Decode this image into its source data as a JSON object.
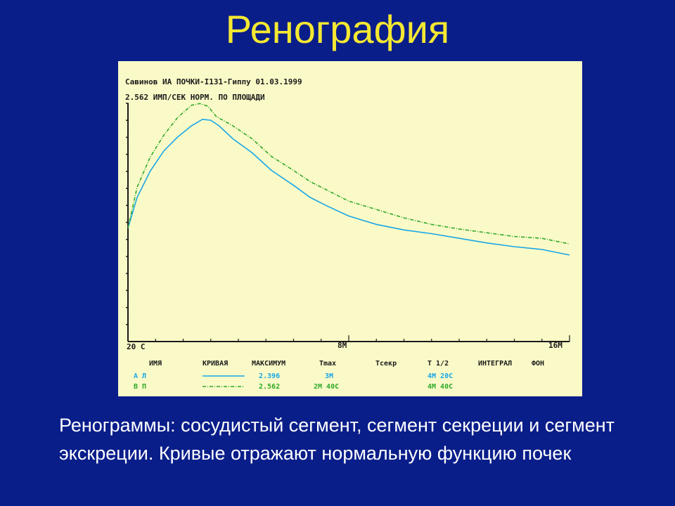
{
  "slide": {
    "title": "Ренография",
    "caption": "Ренограммы: сосудистый сегмент, сегмент секреции и сегмент экскреции. Кривые отражают нормальную функцию почек"
  },
  "colors": {
    "background": "#0a1e8a",
    "title": "#f4e832",
    "panel": "#fafac8",
    "curve_left": "#19a6e6",
    "curve_right": "#2fa82a",
    "ink": "#1a1a1a"
  },
  "chart_data": {
    "type": "line",
    "header_line1": "Савинов ИА  ПОЧКИ-I131-Гиппу  01.03.1999",
    "header_line2": "2.562 ИМП/СЕК    НОРМ. ПО ПЛОЩАДИ",
    "x_start_label": "20 С",
    "x_mid_label": "8М",
    "x_end_label": "16М",
    "xlim": [
      0,
      16
    ],
    "ylim": [
      0,
      2.562
    ],
    "series": [
      {
        "label_short": "А Л",
        "maximum": "2.396",
        "tmax": "3М",
        "tsekr": "",
        "t_half": "4М 20С",
        "color": "#19a6e6",
        "x": [
          0,
          0.33,
          0.8,
          1.3,
          1.8,
          2.3,
          2.7,
          3.0,
          3.3,
          3.8,
          4.5,
          5.2,
          6.0,
          6.6,
          7.2,
          8.0,
          9.0,
          10.0,
          11.0,
          12.0,
          13.0,
          14.0,
          15.0,
          16.0
        ],
        "y": [
          1.22,
          1.55,
          1.83,
          2.05,
          2.2,
          2.32,
          2.39,
          2.38,
          2.32,
          2.18,
          2.03,
          1.84,
          1.68,
          1.55,
          1.46,
          1.35,
          1.26,
          1.2,
          1.16,
          1.11,
          1.06,
          1.02,
          0.99,
          0.93
        ]
      },
      {
        "label_short": "В П",
        "maximum": "2.562",
        "tmax": "2М 40С",
        "tsekr": "",
        "t_half": "4М 40С",
        "color": "#2fa82a",
        "x": [
          0,
          0.33,
          0.8,
          1.3,
          1.8,
          2.3,
          2.6,
          2.9,
          3.2,
          3.8,
          4.5,
          5.2,
          6.0,
          6.6,
          7.2,
          8.0,
          9.0,
          10.0,
          11.0,
          12.0,
          13.0,
          14.0,
          15.0,
          16.0
        ],
        "y": [
          1.22,
          1.66,
          1.98,
          2.22,
          2.41,
          2.54,
          2.56,
          2.53,
          2.42,
          2.32,
          2.18,
          1.99,
          1.84,
          1.72,
          1.63,
          1.51,
          1.42,
          1.33,
          1.26,
          1.21,
          1.17,
          1.13,
          1.11,
          1.05
        ]
      }
    ],
    "legend_headers": {
      "name": "ИМЯ",
      "curve": "КРИВАЯ",
      "maximum": "МАКСИМУМ",
      "tmax": "Tmax",
      "tsekr": "Тсекр",
      "t_half": "Т 1/2",
      "integral": "ИНТЕГРАЛ",
      "background": "ФОН"
    }
  }
}
